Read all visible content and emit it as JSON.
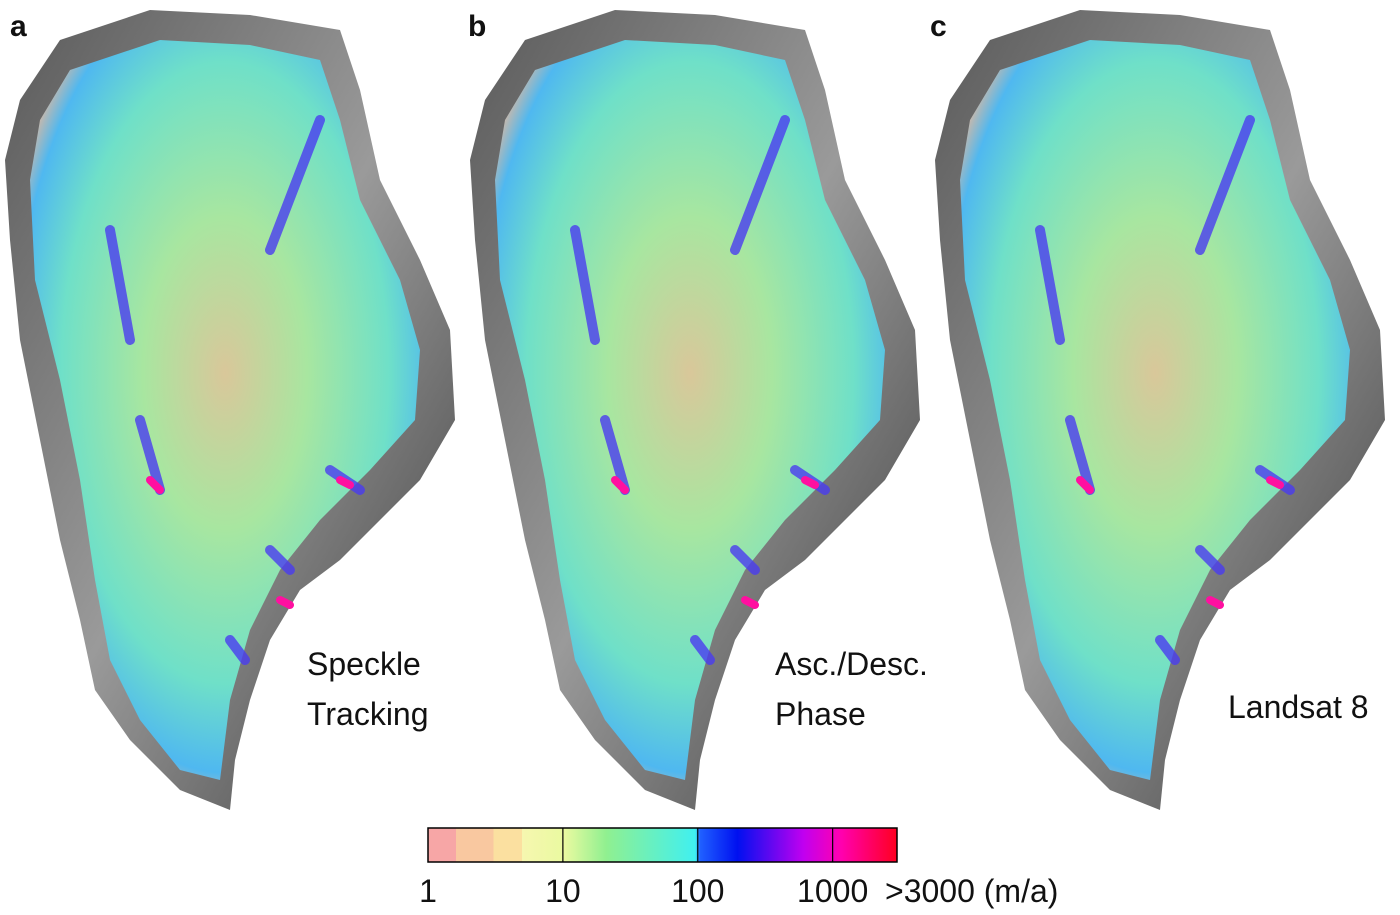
{
  "panels": [
    {
      "label": "a",
      "caption": [
        "Speckle",
        "Tracking"
      ]
    },
    {
      "label": "b",
      "caption": [
        "Asc./Desc.",
        "Phase"
      ]
    },
    {
      "label": "c",
      "caption": [
        "Landsat 8"
      ]
    }
  ],
  "colorbar": {
    "scale": "log",
    "lim": [
      1,
      3000
    ],
    "ticks": [
      1,
      10,
      100,
      1000,
      {
        "value": 3000,
        "label": ">3000 (m/a)"
      }
    ]
  }
}
